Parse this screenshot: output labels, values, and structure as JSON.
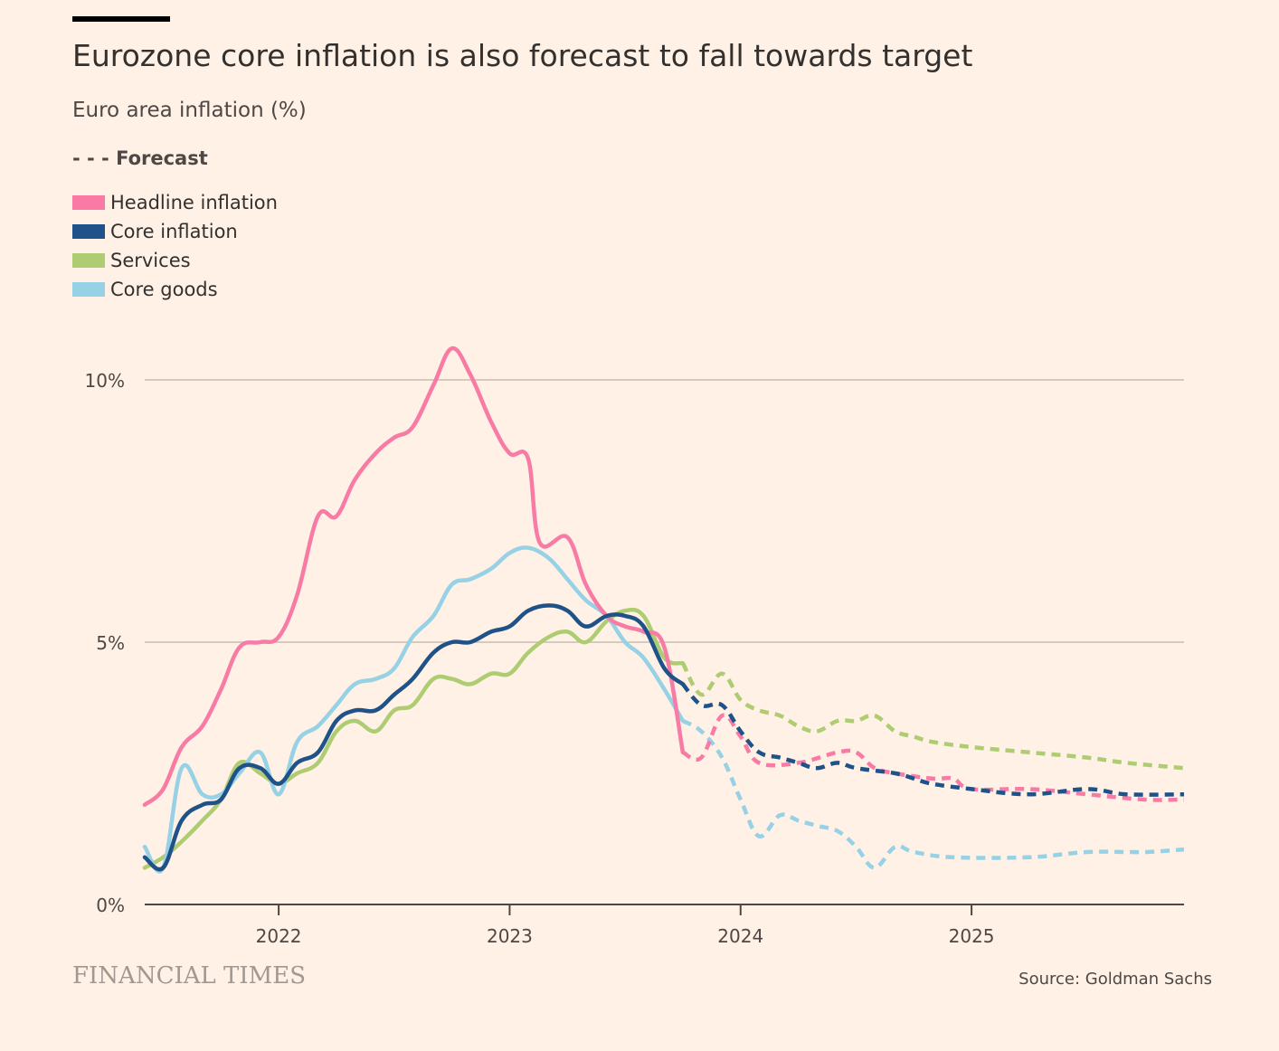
{
  "header": {
    "title": "Eurozone core inflation is also forecast to fall towards target",
    "subtitle": "Euro area inflation (%)",
    "forecast_key": "- - - Forecast"
  },
  "legend": [
    {
      "label": "Headline inflation",
      "color": "#f87ba6"
    },
    {
      "label": "Core inflation",
      "color": "#1f5288"
    },
    {
      "label": "Services",
      "color": "#aecd72"
    },
    {
      "label": "Core goods",
      "color": "#96d1e6"
    }
  ],
  "footer": {
    "logo": "FINANCIAL TIMES",
    "source": "Source: Goldman Sachs"
  },
  "chart_data": {
    "type": "line",
    "title": "Eurozone core inflation is also forecast to fall towards target",
    "subtitle": "Euro area inflation (%)",
    "xlabel": "",
    "ylabel": "",
    "xlim": [
      2021.42,
      2025.92
    ],
    "ylim": [
      0,
      10
    ],
    "grid": true,
    "x_ticks": [
      {
        "value": 2022,
        "label": "2022"
      },
      {
        "value": 2023,
        "label": "2023"
      },
      {
        "value": 2024,
        "label": "2024"
      },
      {
        "value": 2025,
        "label": "2025"
      }
    ],
    "y_ticks": [
      {
        "value": 0,
        "label": "0%"
      },
      {
        "value": 5,
        "label": "5%"
      },
      {
        "value": 10,
        "label": "10%"
      }
    ],
    "forecast_start": 2023.75,
    "series": [
      {
        "name": "Headline inflation",
        "color": "#f87ba6",
        "actual": [
          [
            2021.42,
            1.9
          ],
          [
            2021.5,
            2.2
          ],
          [
            2021.58,
            3.0
          ],
          [
            2021.67,
            3.4
          ],
          [
            2021.75,
            4.1
          ],
          [
            2021.83,
            4.9
          ],
          [
            2021.92,
            5.0
          ],
          [
            2022.0,
            5.1
          ],
          [
            2022.08,
            5.9
          ],
          [
            2022.17,
            7.4
          ],
          [
            2022.25,
            7.4
          ],
          [
            2022.33,
            8.1
          ],
          [
            2022.42,
            8.6
          ],
          [
            2022.5,
            8.9
          ],
          [
            2022.58,
            9.1
          ],
          [
            2022.67,
            9.9
          ],
          [
            2022.75,
            10.6
          ],
          [
            2022.83,
            10.1
          ],
          [
            2022.92,
            9.2
          ],
          [
            2023.0,
            8.6
          ],
          [
            2023.08,
            8.5
          ],
          [
            2023.13,
            6.9
          ],
          [
            2023.25,
            7.0
          ],
          [
            2023.33,
            6.1
          ],
          [
            2023.42,
            5.5
          ],
          [
            2023.5,
            5.3
          ],
          [
            2023.58,
            5.2
          ],
          [
            2023.67,
            4.9
          ],
          [
            2023.75,
            2.9
          ]
        ],
        "forecast": [
          [
            2023.75,
            2.9
          ],
          [
            2023.83,
            2.8
          ],
          [
            2023.92,
            3.6
          ],
          [
            2024.0,
            3.2
          ],
          [
            2024.08,
            2.7
          ],
          [
            2024.25,
            2.7
          ],
          [
            2024.42,
            2.9
          ],
          [
            2024.5,
            2.9
          ],
          [
            2024.58,
            2.6
          ],
          [
            2024.67,
            2.5
          ],
          [
            2024.83,
            2.4
          ],
          [
            2024.92,
            2.4
          ],
          [
            2025.0,
            2.2
          ],
          [
            2025.25,
            2.2
          ],
          [
            2025.5,
            2.1
          ],
          [
            2025.75,
            2.0
          ],
          [
            2025.92,
            2.0
          ]
        ]
      },
      {
        "name": "Core inflation",
        "color": "#1f5288",
        "actual": [
          [
            2021.42,
            0.9
          ],
          [
            2021.5,
            0.7
          ],
          [
            2021.58,
            1.6
          ],
          [
            2021.67,
            1.9
          ],
          [
            2021.75,
            2.0
          ],
          [
            2021.83,
            2.6
          ],
          [
            2021.92,
            2.6
          ],
          [
            2022.0,
            2.3
          ],
          [
            2022.08,
            2.7
          ],
          [
            2022.17,
            2.9
          ],
          [
            2022.25,
            3.5
          ],
          [
            2022.33,
            3.7
          ],
          [
            2022.42,
            3.7
          ],
          [
            2022.5,
            4.0
          ],
          [
            2022.58,
            4.3
          ],
          [
            2022.67,
            4.8
          ],
          [
            2022.75,
            5.0
          ],
          [
            2022.83,
            5.0
          ],
          [
            2022.92,
            5.2
          ],
          [
            2023.0,
            5.3
          ],
          [
            2023.08,
            5.6
          ],
          [
            2023.17,
            5.7
          ],
          [
            2023.25,
            5.6
          ],
          [
            2023.33,
            5.3
          ],
          [
            2023.42,
            5.5
          ],
          [
            2023.5,
            5.5
          ],
          [
            2023.58,
            5.3
          ],
          [
            2023.67,
            4.5
          ],
          [
            2023.75,
            4.2
          ]
        ],
        "forecast": [
          [
            2023.75,
            4.2
          ],
          [
            2023.83,
            3.8
          ],
          [
            2023.92,
            3.8
          ],
          [
            2024.0,
            3.3
          ],
          [
            2024.08,
            2.9
          ],
          [
            2024.17,
            2.8
          ],
          [
            2024.25,
            2.7
          ],
          [
            2024.33,
            2.6
          ],
          [
            2024.42,
            2.7
          ],
          [
            2024.5,
            2.6
          ],
          [
            2024.67,
            2.5
          ],
          [
            2024.75,
            2.4
          ],
          [
            2024.83,
            2.3
          ],
          [
            2025.0,
            2.2
          ],
          [
            2025.25,
            2.1
          ],
          [
            2025.5,
            2.2
          ],
          [
            2025.67,
            2.1
          ],
          [
            2025.92,
            2.1
          ]
        ]
      },
      {
        "name": "Services",
        "color": "#aecd72",
        "actual": [
          [
            2021.42,
            0.7
          ],
          [
            2021.5,
            0.9
          ],
          [
            2021.58,
            1.2
          ],
          [
            2021.67,
            1.6
          ],
          [
            2021.75,
            2.0
          ],
          [
            2021.83,
            2.7
          ],
          [
            2021.92,
            2.5
          ],
          [
            2022.0,
            2.3
          ],
          [
            2022.08,
            2.5
          ],
          [
            2022.17,
            2.7
          ],
          [
            2022.25,
            3.3
          ],
          [
            2022.33,
            3.5
          ],
          [
            2022.42,
            3.3
          ],
          [
            2022.5,
            3.7
          ],
          [
            2022.58,
            3.8
          ],
          [
            2022.67,
            4.3
          ],
          [
            2022.75,
            4.3
          ],
          [
            2022.83,
            4.2
          ],
          [
            2022.92,
            4.4
          ],
          [
            2023.0,
            4.4
          ],
          [
            2023.08,
            4.8
          ],
          [
            2023.17,
            5.1
          ],
          [
            2023.25,
            5.2
          ],
          [
            2023.33,
            5.0
          ],
          [
            2023.42,
            5.4
          ],
          [
            2023.5,
            5.6
          ],
          [
            2023.58,
            5.5
          ],
          [
            2023.67,
            4.7
          ],
          [
            2023.75,
            4.6
          ]
        ],
        "forecast": [
          [
            2023.75,
            4.6
          ],
          [
            2023.83,
            4.0
          ],
          [
            2023.92,
            4.4
          ],
          [
            2024.0,
            3.9
          ],
          [
            2024.08,
            3.7
          ],
          [
            2024.17,
            3.6
          ],
          [
            2024.25,
            3.4
          ],
          [
            2024.33,
            3.3
          ],
          [
            2024.42,
            3.5
          ],
          [
            2024.5,
            3.5
          ],
          [
            2024.58,
            3.6
          ],
          [
            2024.67,
            3.3
          ],
          [
            2024.75,
            3.2
          ],
          [
            2024.83,
            3.1
          ],
          [
            2025.0,
            3.0
          ],
          [
            2025.25,
            2.9
          ],
          [
            2025.5,
            2.8
          ],
          [
            2025.67,
            2.7
          ],
          [
            2025.92,
            2.6
          ]
        ]
      },
      {
        "name": "Core goods",
        "color": "#96d1e6",
        "actual": [
          [
            2021.42,
            1.1
          ],
          [
            2021.5,
            0.7
          ],
          [
            2021.58,
            2.6
          ],
          [
            2021.67,
            2.1
          ],
          [
            2021.75,
            2.1
          ],
          [
            2021.83,
            2.5
          ],
          [
            2021.92,
            2.9
          ],
          [
            2022.0,
            2.1
          ],
          [
            2022.08,
            3.1
          ],
          [
            2022.17,
            3.4
          ],
          [
            2022.25,
            3.8
          ],
          [
            2022.33,
            4.2
          ],
          [
            2022.42,
            4.3
          ],
          [
            2022.5,
            4.5
          ],
          [
            2022.58,
            5.1
          ],
          [
            2022.67,
            5.5
          ],
          [
            2022.75,
            6.1
          ],
          [
            2022.83,
            6.2
          ],
          [
            2022.92,
            6.4
          ],
          [
            2023.0,
            6.7
          ],
          [
            2023.08,
            6.8
          ],
          [
            2023.17,
            6.6
          ],
          [
            2023.25,
            6.2
          ],
          [
            2023.33,
            5.8
          ],
          [
            2023.42,
            5.5
          ],
          [
            2023.5,
            5.0
          ],
          [
            2023.58,
            4.7
          ],
          [
            2023.67,
            4.1
          ],
          [
            2023.75,
            3.5
          ]
        ],
        "forecast": [
          [
            2023.75,
            3.5
          ],
          [
            2023.83,
            3.3
          ],
          [
            2023.92,
            2.8
          ],
          [
            2024.0,
            2.0
          ],
          [
            2024.08,
            1.3
          ],
          [
            2024.17,
            1.7
          ],
          [
            2024.25,
            1.6
          ],
          [
            2024.33,
            1.5
          ],
          [
            2024.42,
            1.4
          ],
          [
            2024.5,
            1.1
          ],
          [
            2024.58,
            0.7
          ],
          [
            2024.67,
            1.1
          ],
          [
            2024.75,
            1.0
          ],
          [
            2024.92,
            0.9
          ],
          [
            2025.25,
            0.9
          ],
          [
            2025.5,
            1.0
          ],
          [
            2025.75,
            1.0
          ],
          [
            2025.92,
            1.05
          ]
        ]
      }
    ]
  }
}
